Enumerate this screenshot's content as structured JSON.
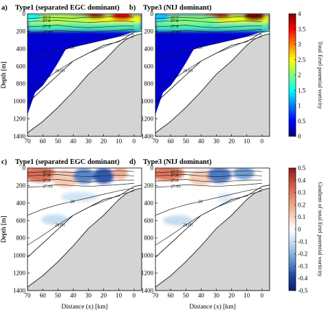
{
  "chart_data": {
    "type": "heatmap",
    "axes": {
      "x_ticks": [
        "70",
        "60",
        "50",
        "40",
        "30",
        "20",
        "10",
        "0"
      ],
      "y_ticks": [
        "0",
        "200",
        "400",
        "600",
        "800",
        "1000",
        "1200",
        "1400"
      ],
      "xlim": [
        70,
        -5
      ],
      "ylim": [
        1400,
        0
      ],
      "ylabel": "Depth [m]",
      "xlabel": "Distance (x) [km]"
    },
    "panels": [
      {
        "id": "a",
        "label": "a)",
        "title": "Type1 (separated EGC dominant)",
        "field": "pv",
        "contour_labels": [
          "27.7",
          "27.8",
          "27.9",
          "27.95",
          "28",
          "28.05"
        ],
        "blobs": [
          {
            "x": 28,
            "y": 25,
            "rx": 9,
            "ry": 30,
            "v": 3.9
          },
          {
            "x": 8,
            "y": 30,
            "rx": 7,
            "ry": 45,
            "v": 3.6
          },
          {
            "x": 50,
            "y": 60,
            "rx": 22,
            "ry": 60,
            "v": 2.2
          },
          {
            "x": 68,
            "y": 40,
            "rx": 7,
            "ry": 50,
            "v": 1.6
          }
        ]
      },
      {
        "id": "b",
        "label": "b)",
        "title": "Type3 (NIJ dominant)",
        "field": "pv",
        "contour_labels": [
          "27.7",
          "27.8",
          "27.9",
          "27.95",
          "28",
          "28.05"
        ],
        "blobs": [
          {
            "x": 30,
            "y": 25,
            "rx": 9,
            "ry": 30,
            "v": 3.8
          },
          {
            "x": 5,
            "y": 30,
            "rx": 7,
            "ry": 50,
            "v": 4.0
          },
          {
            "x": 50,
            "y": 70,
            "rx": 22,
            "ry": 60,
            "v": 2.0
          },
          {
            "x": 68,
            "y": 40,
            "rx": 7,
            "ry": 50,
            "v": 1.3
          }
        ]
      },
      {
        "id": "c",
        "label": "c)",
        "title": "Type1 (separated EGC dominant)",
        "field": "grad",
        "contour_labels": [
          "27.7",
          "27.8",
          "27.9",
          "27.95",
          "28",
          "28.05"
        ],
        "blobs": [
          {
            "x": 62,
            "y": 70,
            "rx": 11,
            "ry": 90,
            "v": 0.32
          },
          {
            "x": 45,
            "y": 120,
            "rx": 9,
            "ry": 100,
            "v": 0.12
          },
          {
            "x": 33,
            "y": 90,
            "rx": 7,
            "ry": 90,
            "v": -0.28
          },
          {
            "x": 20,
            "y": 90,
            "rx": 7,
            "ry": 90,
            "v": -0.35
          },
          {
            "x": 9,
            "y": 60,
            "rx": 5,
            "ry": 70,
            "v": 0.18
          },
          {
            "x": 52,
            "y": 590,
            "rx": 9,
            "ry": 60,
            "v": -0.1
          },
          {
            "x": 36,
            "y": 330,
            "rx": 12,
            "ry": 55,
            "v": -0.08
          }
        ]
      },
      {
        "id": "d",
        "label": "d)",
        "title": "Type3 (NIJ dominant)",
        "field": "grad",
        "contour_labels": [
          "27.7",
          "27.8",
          "27.9",
          "27.95",
          "28",
          "28.05"
        ],
        "blobs": [
          {
            "x": 62,
            "y": 60,
            "rx": 11,
            "ry": 85,
            "v": 0.3
          },
          {
            "x": 40,
            "y": 110,
            "rx": 8,
            "ry": 90,
            "v": 0.12
          },
          {
            "x": 28,
            "y": 80,
            "rx": 8,
            "ry": 90,
            "v": -0.3
          },
          {
            "x": 12,
            "y": 60,
            "rx": 7,
            "ry": 70,
            "v": -0.25
          },
          {
            "x": 55,
            "y": 600,
            "rx": 10,
            "ry": 60,
            "v": -0.1
          },
          {
            "x": 24,
            "y": 340,
            "rx": 5,
            "ry": 60,
            "v": -0.06
          }
        ]
      }
    ],
    "colorbars": [
      {
        "field": "pv",
        "label": "Total Ertel potential vorticity",
        "range": [
          0,
          4
        ],
        "ticks": [
          "4",
          "3.5",
          "3",
          "2.5",
          "2",
          "1.5",
          "1",
          "0.5",
          "0"
        ]
      },
      {
        "field": "grad",
        "label": "Gradient of total Ertel potential vorticity",
        "range": [
          -0.5,
          0.5
        ],
        "ticks": [
          "0.5",
          "0.4",
          "0.3",
          "0.2",
          "0.1",
          "0",
          "-0.1",
          "-0.2",
          "-0.3",
          "-0.4",
          "-0.5"
        ]
      }
    ],
    "colors": {
      "pv_colormap": [
        "#00007f",
        "#0000ff",
        "#007fff",
        "#00ffff",
        "#7fff7f",
        "#ffff00",
        "#ff7f00",
        "#ff0000",
        "#7f0000"
      ],
      "grad_colormap": [
        "#0a1f6b",
        "#2249a5",
        "#6a9bd3",
        "#b8d6ef",
        "#ffffff",
        "#f6c9b0",
        "#e98f6e",
        "#d0543d",
        "#8e1a1b"
      ],
      "topography": "#d4d4d4"
    }
  }
}
